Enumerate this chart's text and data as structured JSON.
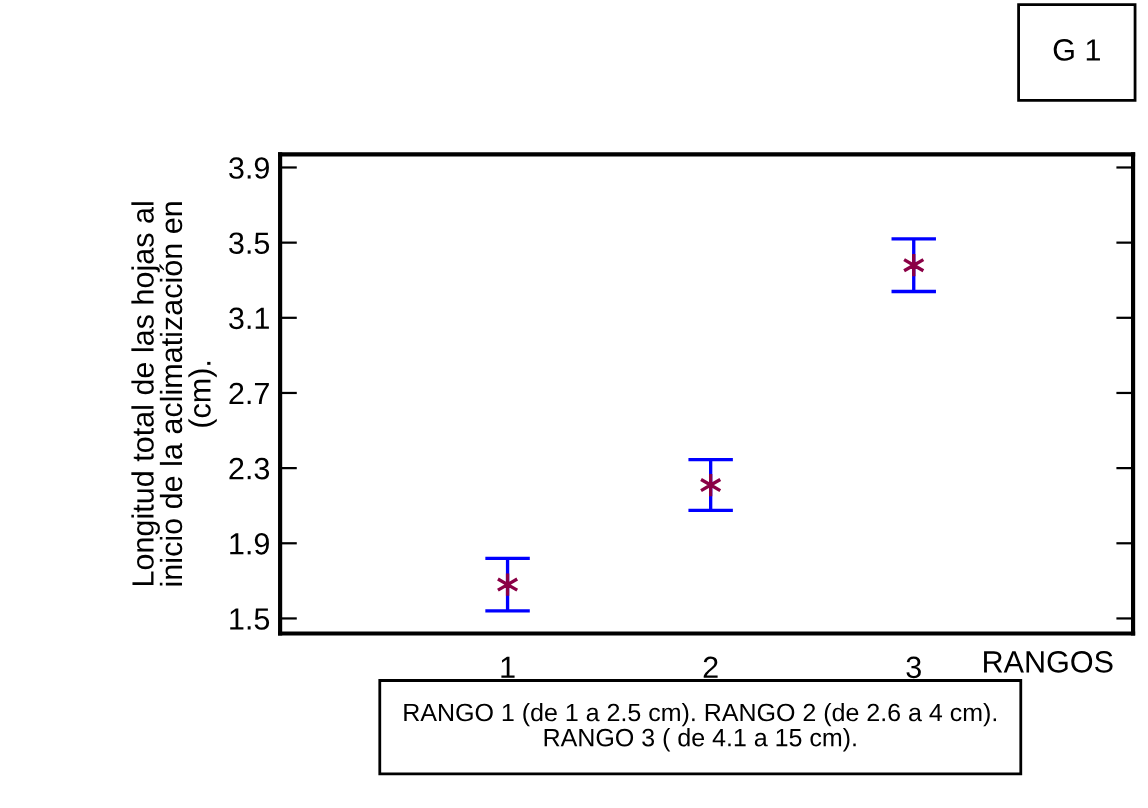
{
  "chart_data": {
    "type": "scatter",
    "ylabel": "Longitud total de las hojas al\ninicio de la aclimatización en\n(cm).",
    "xlabel": "RANGOS",
    "x": [
      1,
      2,
      3
    ],
    "xlim": [
      -0.12,
      4.08
    ],
    "xticks": [
      1,
      2,
      3
    ],
    "ylim": [
      1.42,
      3.97
    ],
    "yticks": [
      1.5,
      1.9,
      2.3,
      2.7,
      3.1,
      3.5,
      3.9
    ],
    "series": [
      {
        "color": "#8b0046",
        "values": [
          1.68,
          2.21,
          3.38
        ],
        "errors": [
          0.14,
          0.135,
          0.14
        ]
      }
    ],
    "marker": "cross",
    "grid": false,
    "legend": false,
    "annotations": [
      "G 1",
      "RANGO 1 (de 1 a 2.5 cm). RANGO 2 (de 2.6 a 4 cm).\nRANGO 3 ( de 4.1 a 15 cm)."
    ]
  }
}
